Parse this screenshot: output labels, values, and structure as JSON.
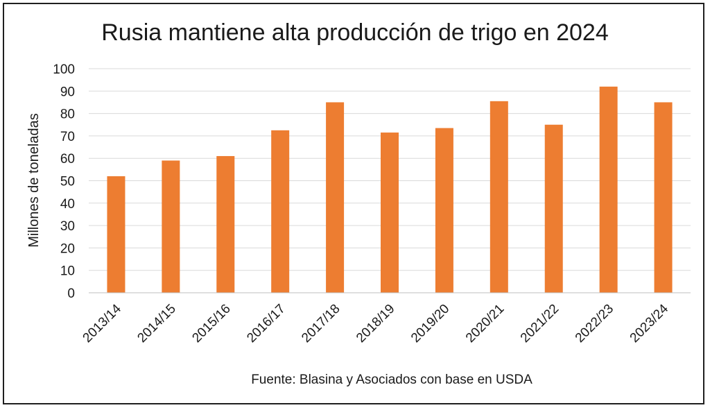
{
  "chart_data": {
    "type": "bar",
    "title": "Rusia mantiene alta producción de trigo en 2024",
    "ylabel": "Millones de toneladas",
    "xlabel": "",
    "source": "Fuente: Blasina y Asociados con base en USDA",
    "categories": [
      "2013/14",
      "2014/15",
      "2015/16",
      "2016/17",
      "2017/18",
      "2018/19",
      "2019/20",
      "2020/21",
      "2021/22",
      "2022/23",
      "2023/24"
    ],
    "values": [
      52,
      59,
      61,
      72.5,
      85,
      71.5,
      73.5,
      85.5,
      75,
      92,
      85
    ],
    "ylim": [
      0,
      100
    ],
    "yticks": [
      0,
      10,
      20,
      30,
      40,
      50,
      60,
      70,
      80,
      90,
      100
    ],
    "grid": true,
    "legend": "none",
    "bar_color": "#ED7D31",
    "grid_color": "#d9d9d9"
  }
}
